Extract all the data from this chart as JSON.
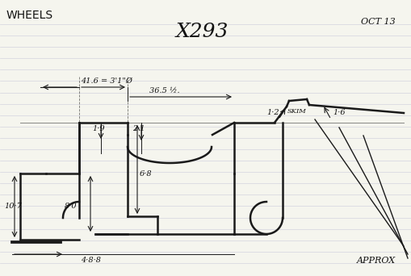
{
  "title": "X293",
  "subtitle_left": "WHEELS",
  "subtitle_right": "OCT 13",
  "note_bottom_right": "APPROX",
  "bg_color": "#f5f5ee",
  "line_color": "#1a1a1a",
  "line_width": 1.8,
  "annotation_color": "#111111",
  "ruled_line_color": "#aaaacc",
  "ruled_line_alpha": 0.45,
  "ruled_line_count": 22,
  "dim_41_6": "41.6 = 3'1\"Ø",
  "dim_36_5": "36.5 ½.",
  "dim_10_7": "10·7",
  "dim_1_9": "1·9",
  "dim_2_1": "2·1",
  "dim_6_8": "6·8",
  "dim_8_0": "8·0",
  "dim_4_8_8": "4·8·8",
  "dim_1_2": "1·2",
  "dim_skim": "SKIM",
  "dim_1_6": "1·6",
  "figsize": [
    5.1,
    3.42
  ],
  "dpi": 100
}
